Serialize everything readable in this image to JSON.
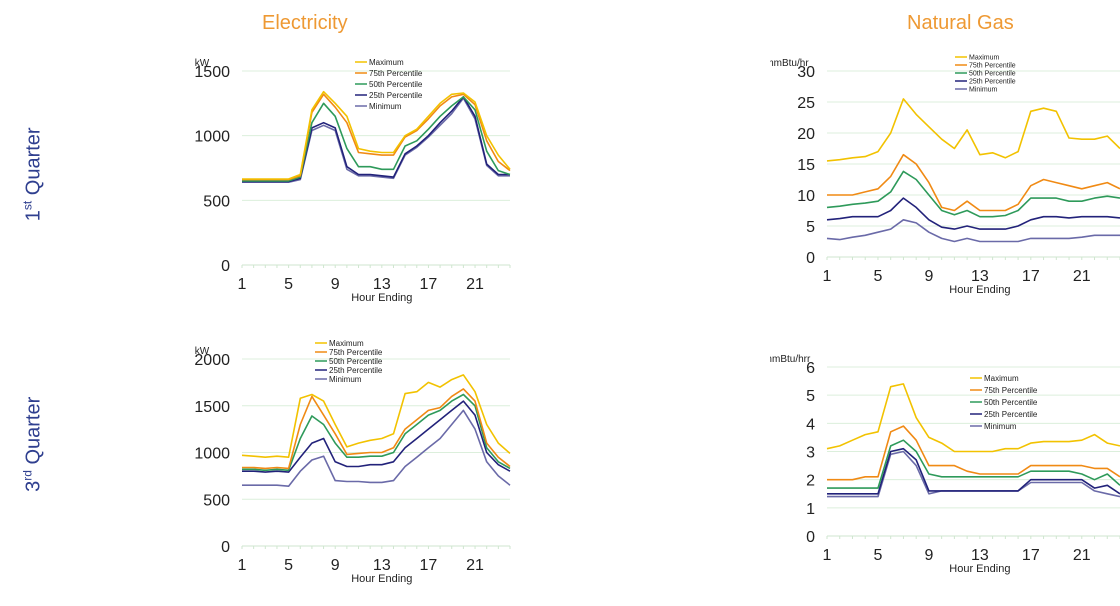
{
  "page": {
    "col_titles": [
      "Electricity",
      "Natural Gas"
    ],
    "row_titles": [
      {
        "num": "1",
        "sup": "st",
        "word": " Quarter"
      },
      {
        "num": "3",
        "sup": "rd",
        "word": " Quarter"
      }
    ]
  },
  "chart_data": [
    {
      "type": "line",
      "ylabel": "kW",
      "xlabel": "Hour Ending",
      "ylim": [
        0,
        1500
      ],
      "yticks": [
        0,
        500,
        1000,
        1500
      ],
      "xticks": [
        1,
        5,
        9,
        13,
        17,
        21
      ],
      "x": [
        1,
        2,
        3,
        4,
        5,
        6,
        7,
        8,
        9,
        10,
        11,
        12,
        13,
        14,
        15,
        16,
        17,
        18,
        19,
        20,
        21,
        22,
        23,
        24
      ],
      "colors": [
        "#f2c200",
        "#f08a14",
        "#2e9a5a",
        "#22227a",
        "#6a6aa8"
      ],
      "legend_position": "top-center",
      "gridlines": true,
      "series": [
        {
          "name": "Maximum",
          "values": [
            665,
            665,
            665,
            665,
            665,
            700,
            1200,
            1340,
            1250,
            1150,
            900,
            880,
            870,
            870,
            1000,
            1050,
            1150,
            1250,
            1320,
            1330,
            1260,
            1000,
            850,
            740
          ]
        },
        {
          "name": "75th Percentile",
          "values": [
            660,
            660,
            660,
            660,
            660,
            690,
            1180,
            1320,
            1220,
            1100,
            870,
            860,
            850,
            850,
            990,
            1040,
            1130,
            1230,
            1300,
            1320,
            1240,
            960,
            800,
            730
          ]
        },
        {
          "name": "50th Percentile",
          "values": [
            650,
            650,
            650,
            650,
            650,
            680,
            1100,
            1250,
            1150,
            900,
            760,
            760,
            740,
            740,
            920,
            960,
            1050,
            1150,
            1230,
            1300,
            1200,
            880,
            730,
            700
          ]
        },
        {
          "name": "25th Percentile",
          "values": [
            645,
            645,
            645,
            645,
            645,
            670,
            1060,
            1100,
            1060,
            760,
            700,
            700,
            690,
            680,
            860,
            920,
            1000,
            1100,
            1190,
            1300,
            1150,
            780,
            700,
            700
          ]
        },
        {
          "name": "Minimum",
          "values": [
            640,
            640,
            640,
            640,
            640,
            660,
            1040,
            1080,
            1040,
            740,
            690,
            690,
            680,
            670,
            850,
            910,
            990,
            1080,
            1170,
            1290,
            1130,
            770,
            690,
            690
          ]
        }
      ]
    },
    {
      "type": "line",
      "ylabel": "mmBtu/hr",
      "xlabel": "Hour Ending",
      "ylim": [
        0,
        30
      ],
      "yticks": [
        0,
        5,
        10,
        15,
        20,
        25,
        30
      ],
      "xticks": [
        1,
        5,
        9,
        13,
        17,
        21
      ],
      "x": [
        1,
        2,
        3,
        4,
        5,
        6,
        7,
        8,
        9,
        10,
        11,
        12,
        13,
        14,
        15,
        16,
        17,
        18,
        19,
        20,
        21,
        22,
        23,
        24
      ],
      "colors": [
        "#f2c200",
        "#f08a14",
        "#2e9a5a",
        "#22227a",
        "#6a6aa8"
      ],
      "legend_position": "top-center",
      "gridlines": true,
      "series": [
        {
          "name": "Maximum",
          "values": [
            15.5,
            15.7,
            16,
            16.2,
            17,
            20,
            25.5,
            23,
            21,
            19,
            17.5,
            20.5,
            16.5,
            16.8,
            16,
            17,
            23.5,
            24,
            23.5,
            19.2,
            19,
            19,
            19.5,
            17.5
          ]
        },
        {
          "name": "75th Percentile",
          "values": [
            10,
            10,
            10,
            10.5,
            11,
            13,
            16.5,
            15,
            12,
            8,
            7.5,
            9,
            7.5,
            7.5,
            7.5,
            8.5,
            11.5,
            12.5,
            12,
            11.5,
            11,
            11.5,
            12,
            11
          ]
        },
        {
          "name": "50th Percentile",
          "values": [
            8,
            8.2,
            8.5,
            8.7,
            9,
            10.5,
            13.8,
            12.5,
            10,
            7.5,
            6.8,
            7.5,
            6.5,
            6.5,
            6.7,
            7.5,
            9.5,
            9.5,
            9.5,
            9,
            9,
            9.5,
            9.8,
            9.5
          ]
        },
        {
          "name": "25th Percentile",
          "values": [
            6,
            6.2,
            6.5,
            6.5,
            6.5,
            7.5,
            9.5,
            8,
            6,
            4.8,
            4.5,
            5,
            4.5,
            4.5,
            4.5,
            5,
            6,
            6.5,
            6.5,
            6.3,
            6.5,
            6.5,
            6.5,
            6.3
          ]
        },
        {
          "name": "Minimum",
          "values": [
            3,
            2.8,
            3.2,
            3.5,
            4,
            4.5,
            6,
            5.5,
            4,
            3,
            2.5,
            3,
            2.5,
            2.5,
            2.5,
            2.5,
            3,
            3,
            3,
            3,
            3.2,
            3.5,
            3.5,
            3.5
          ]
        }
      ]
    },
    {
      "type": "line",
      "ylabel": "kW",
      "xlabel": "Hour Ending",
      "ylim": [
        0,
        2000
      ],
      "yticks": [
        0,
        500,
        1000,
        1500,
        2000
      ],
      "xticks": [
        1,
        5,
        9,
        13,
        17,
        21
      ],
      "x": [
        1,
        2,
        3,
        4,
        5,
        6,
        7,
        8,
        9,
        10,
        11,
        12,
        13,
        14,
        15,
        16,
        17,
        18,
        19,
        20,
        21,
        22,
        23,
        24
      ],
      "colors": [
        "#f2c200",
        "#f08a14",
        "#2e9a5a",
        "#22227a",
        "#6a6aa8"
      ],
      "legend_position": "top-center",
      "gridlines": true,
      "series": [
        {
          "name": "Maximum",
          "values": [
            970,
            960,
            950,
            960,
            950,
            1580,
            1620,
            1550,
            1300,
            1060,
            1100,
            1130,
            1150,
            1200,
            1630,
            1650,
            1750,
            1700,
            1780,
            1830,
            1650,
            1300,
            1100,
            990
          ]
        },
        {
          "name": "75th Percentile",
          "values": [
            840,
            840,
            830,
            840,
            830,
            1300,
            1600,
            1400,
            1200,
            980,
            990,
            1000,
            1000,
            1050,
            1250,
            1350,
            1450,
            1480,
            1600,
            1680,
            1550,
            1100,
            950,
            850
          ]
        },
        {
          "name": "50th Percentile",
          "values": [
            820,
            820,
            810,
            820,
            810,
            1150,
            1390,
            1300,
            1100,
            950,
            950,
            960,
            960,
            1000,
            1200,
            1300,
            1400,
            1450,
            1550,
            1620,
            1500,
            1050,
            900,
            830
          ]
        },
        {
          "name": "25th Percentile",
          "values": [
            800,
            800,
            790,
            800,
            790,
            950,
            1100,
            1150,
            900,
            850,
            850,
            870,
            870,
            900,
            1050,
            1150,
            1250,
            1350,
            1450,
            1550,
            1400,
            1000,
            870,
            800
          ]
        },
        {
          "name": "Minimum",
          "values": [
            650,
            650,
            650,
            650,
            640,
            800,
            920,
            960,
            700,
            690,
            690,
            680,
            680,
            700,
            850,
            950,
            1050,
            1150,
            1300,
            1450,
            1250,
            900,
            750,
            650
          ]
        }
      ]
    },
    {
      "type": "line",
      "ylabel": "mmBtu/hrr",
      "xlabel": "Hour Ending",
      "ylim": [
        0,
        6
      ],
      "yticks": [
        0,
        1,
        2,
        3,
        4,
        5,
        6
      ],
      "xticks": [
        1,
        5,
        9,
        13,
        17,
        21
      ],
      "x": [
        1,
        2,
        3,
        4,
        5,
        6,
        7,
        8,
        9,
        10,
        11,
        12,
        13,
        14,
        15,
        16,
        17,
        18,
        19,
        20,
        21,
        22,
        23,
        24
      ],
      "colors": [
        "#f2c200",
        "#f08a14",
        "#2e9a5a",
        "#22227a",
        "#6a6aa8"
      ],
      "legend_position": "right",
      "gridlines": true,
      "series": [
        {
          "name": "Maximum",
          "values": [
            3.1,
            3.2,
            3.4,
            3.6,
            3.7,
            5.3,
            5.4,
            4.2,
            3.5,
            3.3,
            3.0,
            3.0,
            3.0,
            3.0,
            3.1,
            3.1,
            3.3,
            3.35,
            3.35,
            3.35,
            3.4,
            3.6,
            3.3,
            3.2
          ]
        },
        {
          "name": "75th Percentile",
          "values": [
            2.0,
            2.0,
            2.0,
            2.1,
            2.1,
            3.7,
            3.9,
            3.4,
            2.5,
            2.5,
            2.5,
            2.3,
            2.2,
            2.2,
            2.2,
            2.2,
            2.5,
            2.5,
            2.5,
            2.5,
            2.5,
            2.4,
            2.4,
            2.1
          ]
        },
        {
          "name": "50th Percentile",
          "values": [
            1.7,
            1.7,
            1.7,
            1.7,
            1.7,
            3.2,
            3.4,
            3.0,
            2.2,
            2.1,
            2.1,
            2.1,
            2.1,
            2.1,
            2.1,
            2.1,
            2.3,
            2.3,
            2.3,
            2.3,
            2.2,
            2.0,
            2.2,
            1.8
          ]
        },
        {
          "name": "25th Percentile",
          "values": [
            1.5,
            1.5,
            1.5,
            1.5,
            1.5,
            3.0,
            3.1,
            2.7,
            1.6,
            1.6,
            1.6,
            1.6,
            1.6,
            1.6,
            1.6,
            1.6,
            2.0,
            2.0,
            2.0,
            2.0,
            2.0,
            1.7,
            1.8,
            1.5
          ]
        },
        {
          "name": "Minimum",
          "values": [
            1.4,
            1.4,
            1.4,
            1.4,
            1.4,
            2.9,
            3.0,
            2.5,
            1.5,
            1.6,
            1.6,
            1.6,
            1.6,
            1.6,
            1.6,
            1.6,
            1.9,
            1.9,
            1.9,
            1.9,
            1.9,
            1.6,
            1.5,
            1.4
          ]
        }
      ]
    }
  ]
}
